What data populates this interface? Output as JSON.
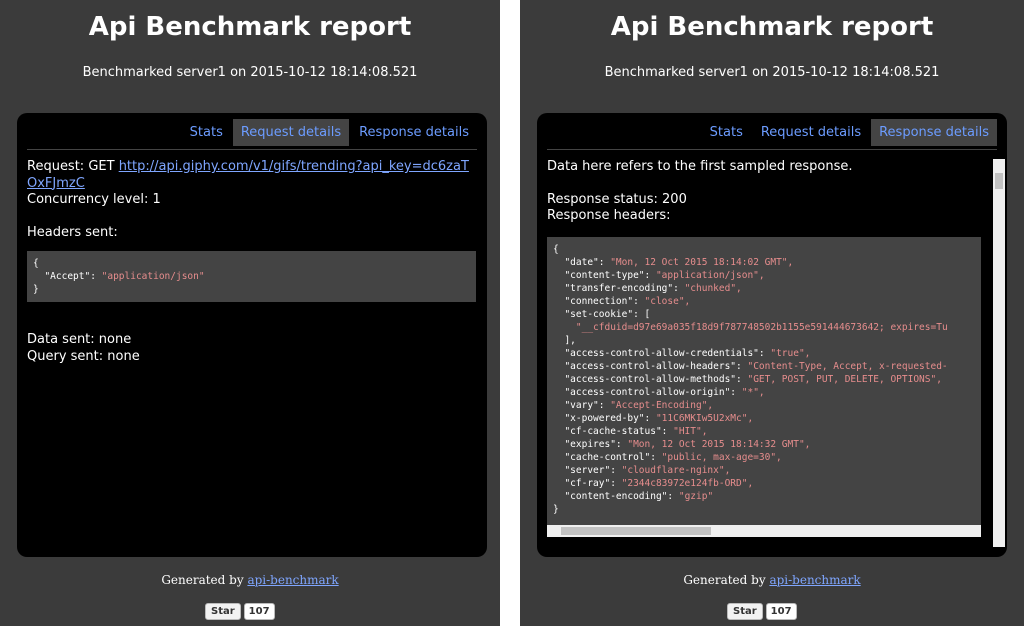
{
  "panels": [
    {
      "title": "Api Benchmark report",
      "subtitle": "Benchmarked server1 on 2015-10-12 18:14:08.521",
      "tabs": [
        "Stats",
        "Request details",
        "Response details"
      ],
      "active_tab": 1,
      "content": {
        "request_label": "Request: GET",
        "request_url": "http://api.giphy.com/v1/gifs/trending?api_key=dc6zaTOxFJmzC",
        "concurrency": "Concurrency level: 1",
        "headers_label": "Headers sent:",
        "code": [
          {
            "k": "{"
          },
          {
            "k": "  \"Accept\": ",
            "v": "\"application/json\""
          },
          {
            "k": "}"
          }
        ],
        "data_sent": "Data sent: none",
        "query_sent": "Query sent: none"
      },
      "footer": {
        "prefix": "Generated by",
        "link": "api-benchmark"
      },
      "star": {
        "label": "Star",
        "count": 107
      }
    },
    {
      "title": "Api Benchmark report",
      "subtitle": "Benchmarked server1 on 2015-10-12 18:14:08.521",
      "tabs": [
        "Stats",
        "Request details",
        "Response details"
      ],
      "active_tab": 2,
      "content": {
        "note": "Data here refers to the first sampled response.",
        "status": "Response status: 200",
        "headers_label": "Response headers:",
        "code": [
          {
            "k": "{"
          },
          {
            "k": "  \"date\": ",
            "v": "\"Mon, 12 Oct 2015 18:14:02 GMT\","
          },
          {
            "k": "  \"content-type\": ",
            "v": "\"application/json\","
          },
          {
            "k": "  \"transfer-encoding\": ",
            "v": "\"chunked\","
          },
          {
            "k": "  \"connection\": ",
            "v": "\"close\","
          },
          {
            "k": "  \"set-cookie\": ["
          },
          {
            "k": "    ",
            "v": "\"__cfduid=d97e69a035f18d9f787748502b1155e591444673642; expires=Tu"
          },
          {
            "k": "  ],"
          },
          {
            "k": "  \"access-control-allow-credentials\": ",
            "v": "\"true\","
          },
          {
            "k": "  \"access-control-allow-headers\": ",
            "v": "\"Content-Type, Accept, x-requested-"
          },
          {
            "k": "  \"access-control-allow-methods\": ",
            "v": "\"GET, POST, PUT, DELETE, OPTIONS\","
          },
          {
            "k": "  \"access-control-allow-origin\": ",
            "v": "\"*\","
          },
          {
            "k": "  \"vary\": ",
            "v": "\"Accept-Encoding\","
          },
          {
            "k": "  \"x-powered-by\": ",
            "v": "\"11C6MKIw5U2xMc\","
          },
          {
            "k": "  \"cf-cache-status\": ",
            "v": "\"HIT\","
          },
          {
            "k": "  \"expires\": ",
            "v": "\"Mon, 12 Oct 2015 18:14:32 GMT\","
          },
          {
            "k": "  \"cache-control\": ",
            "v": "\"public, max-age=30\","
          },
          {
            "k": "  \"server\": ",
            "v": "\"cloudflare-nginx\","
          },
          {
            "k": "  \"cf-ray\": ",
            "v": "\"2344c83972e124fb-ORD\","
          },
          {
            "k": "  \"content-encoding\": ",
            "v": "\"gzip\""
          },
          {
            "k": "}"
          }
        ]
      },
      "footer": {
        "prefix": "Generated by",
        "link": "api-benchmark"
      },
      "star": {
        "label": "Star",
        "count": 107
      }
    }
  ]
}
